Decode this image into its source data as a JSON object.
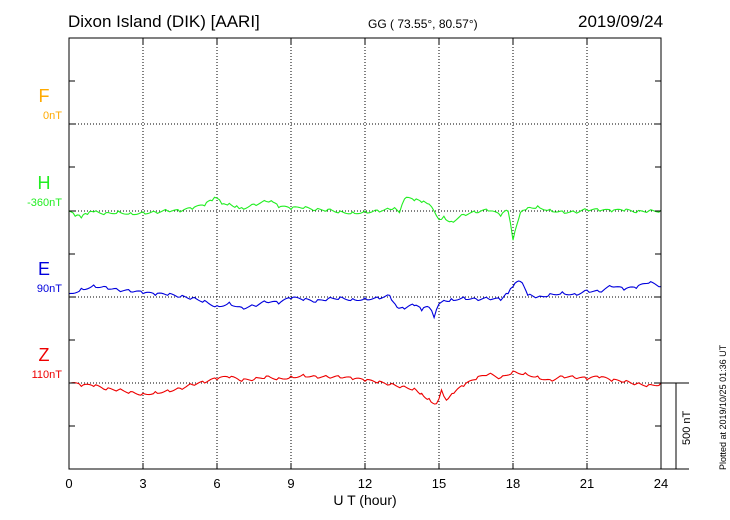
{
  "header": {
    "station": "Dixon Island (DIK)  [AARI]",
    "coords": "GG ( 73.55°,  80.57°)",
    "date": "2019/09/24"
  },
  "footer": {
    "plotted": "Plotted at 2019/10/25 01:36 UT"
  },
  "chart_data": {
    "type": "line",
    "xlabel": "U T (hour)",
    "xlim": [
      0,
      24
    ],
    "xticks": [
      "0",
      "3",
      "6",
      "9",
      "12",
      "15",
      "18",
      "21",
      "24"
    ],
    "grid": true,
    "scale_bar": {
      "label": "500 nT",
      "value_nT": 500
    },
    "series": [
      {
        "name": "F",
        "baseline": "0nT",
        "color": "#ffaa00",
        "baseline_nT": 0,
        "hours": [],
        "values": []
      },
      {
        "name": "H",
        "baseline": "-360nT",
        "color": "#22ee22",
        "baseline_nT": -360,
        "hours": [
          0,
          0.25,
          0.5,
          0.75,
          1,
          1.5,
          2,
          2.5,
          3,
          3.5,
          4,
          4.5,
          5,
          5.5,
          5.8,
          6,
          6.2,
          6.5,
          6.8,
          7,
          7.5,
          8,
          8.2,
          8.5,
          9,
          9.5,
          10,
          10.5,
          11,
          11.5,
          12,
          12.5,
          13,
          13.2,
          13.4,
          13.6,
          14,
          14.3,
          14.6,
          14.8,
          15,
          15.2,
          15.5,
          16,
          16.5,
          17,
          17.5,
          17.8,
          18,
          18.3,
          18.6,
          19,
          19.5,
          20,
          20.5,
          21,
          21.5,
          22,
          22.5,
          23,
          23.5,
          24
        ],
        "values": [
          0,
          -30,
          -40,
          -20,
          -5,
          -10,
          0,
          -10,
          -5,
          -5,
          0,
          -5,
          10,
          30,
          60,
          75,
          40,
          45,
          30,
          20,
          40,
          55,
          60,
          20,
          10,
          15,
          5,
          10,
          0,
          -5,
          0,
          5,
          10,
          20,
          -10,
          70,
          60,
          50,
          40,
          0,
          -50,
          -30,
          -60,
          -20,
          -10,
          0,
          -30,
          0,
          -170,
          -10,
          20,
          30,
          10,
          0,
          -5,
          5,
          0,
          -5,
          0,
          -10,
          0,
          5
        ]
      },
      {
        "name": "E",
        "baseline": "90nT",
        "color": "#0000dd",
        "baseline_nT": 90,
        "hours": [
          0,
          0.5,
          1,
          1.5,
          2,
          2.5,
          3,
          3.5,
          4,
          4.5,
          5,
          5.5,
          6,
          6.5,
          7,
          7.5,
          8,
          8.5,
          9,
          9.5,
          10,
          10.5,
          11,
          11.5,
          12,
          12.5,
          13,
          13.3,
          13.6,
          14,
          14.3,
          14.6,
          14.8,
          15,
          15.2,
          15.5,
          16,
          16.5,
          17,
          17.5,
          17.8,
          18,
          18.3,
          18.6,
          19,
          19.5,
          20,
          20.5,
          21,
          21.5,
          22,
          22.5,
          23,
          23.5,
          24
        ],
        "values": [
          20,
          50,
          70,
          60,
          40,
          30,
          20,
          10,
          10,
          0,
          -5,
          -20,
          -50,
          -30,
          -60,
          -50,
          -30,
          -40,
          -10,
          -20,
          -30,
          -10,
          0,
          -10,
          -5,
          0,
          10,
          -60,
          -70,
          -50,
          -80,
          -60,
          -120,
          -40,
          -20,
          -10,
          0,
          -10,
          -10,
          -20,
          20,
          60,
          90,
          10,
          0,
          20,
          30,
          20,
          40,
          30,
          60,
          40,
          50,
          80,
          60
        ]
      },
      {
        "name": "Z",
        "baseline": "110nT",
        "color": "#ee0000",
        "baseline_nT": 110,
        "hours": [
          0,
          0.5,
          1,
          1.5,
          2,
          2.5,
          3,
          3.5,
          4,
          4.5,
          5,
          5.5,
          6,
          6.5,
          7,
          7.5,
          8,
          8.5,
          9,
          9.5,
          10,
          10.5,
          11,
          11.5,
          12,
          12.5,
          13,
          13.5,
          14,
          14.3,
          14.6,
          14.9,
          15.1,
          15.3,
          15.6,
          16,
          16.5,
          17,
          17.5,
          18,
          18.5,
          19,
          19.5,
          20,
          20.5,
          21,
          21.5,
          22,
          22.5,
          23,
          23.5,
          24
        ],
        "values": [
          0,
          -20,
          -20,
          -40,
          -40,
          -50,
          -60,
          -50,
          -40,
          -30,
          -10,
          0,
          20,
          30,
          10,
          20,
          40,
          30,
          40,
          50,
          40,
          35,
          30,
          20,
          10,
          0,
          -10,
          -20,
          -30,
          -60,
          -90,
          -120,
          -40,
          -100,
          -60,
          -20,
          20,
          50,
          30,
          70,
          60,
          40,
          20,
          40,
          30,
          20,
          30,
          10,
          5,
          -5,
          -10,
          0
        ]
      }
    ]
  }
}
